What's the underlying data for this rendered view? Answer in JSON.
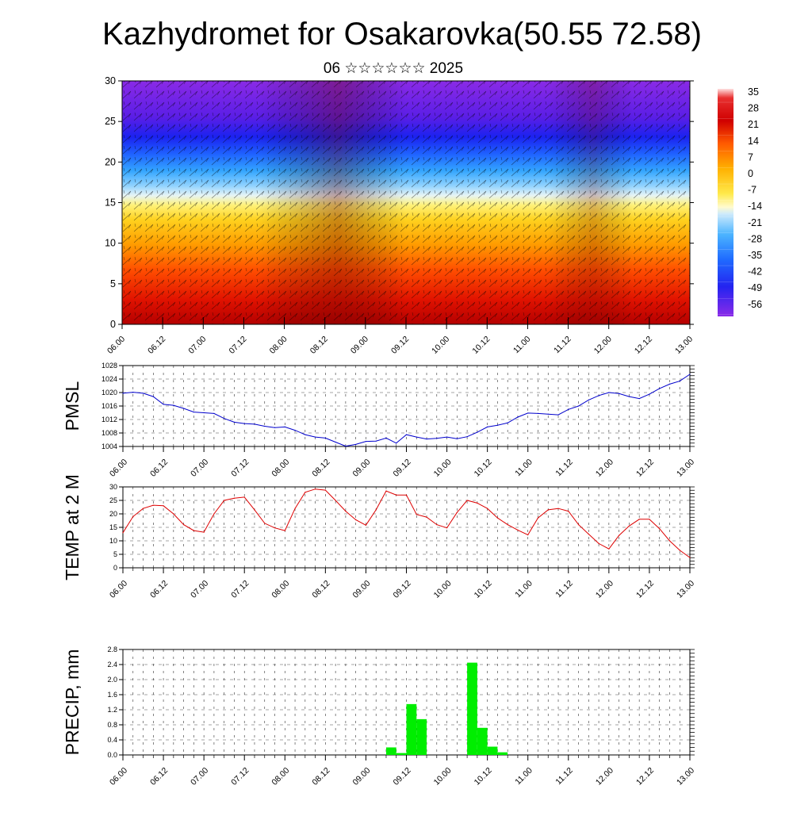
{
  "title": "Kazhydromet for Osakarovka(50.55 72.58)",
  "subtitle": "06 ☆☆☆☆☆☆ 2025",
  "x_ticks": [
    "06.00",
    "06.12",
    "07.00",
    "07.12",
    "08.00",
    "08.12",
    "09.00",
    "09.12",
    "10.00",
    "10.12",
    "11.00",
    "11.12",
    "12.00",
    "12.12",
    "13.00"
  ],
  "chart_data": [
    {
      "type": "heatmap",
      "ylim": [
        0,
        30
      ],
      "yticks": [
        "0",
        "5",
        "10",
        "15",
        "20",
        "25",
        "30"
      ],
      "colorbar_labels": [
        "35",
        "28",
        "21",
        "14",
        "7",
        "0",
        "-7",
        "-14",
        "-21",
        "-28",
        "-35",
        "-42",
        "-49",
        "-56"
      ],
      "colors": {
        "hot": "#b40000",
        "warm": "#ff8000",
        "mild": "#ffe94a",
        "cool": "#9ed8ff",
        "cold": "#1f6bff",
        "frigid": "#7a23e6"
      }
    },
    {
      "type": "line",
      "ylabel": "PMSL",
      "ylim": [
        1004,
        1028
      ],
      "yticks": [
        "1004",
        "1008",
        "1012",
        "1016",
        "1020",
        "1024",
        "1028"
      ],
      "color": "#0000cc",
      "x": [
        0,
        3,
        6,
        9,
        12,
        15,
        18,
        21,
        24,
        27,
        30,
        33,
        36,
        39,
        42,
        45,
        48,
        51,
        54,
        57,
        60,
        63,
        66,
        69,
        72,
        75,
        78,
        81,
        84,
        87,
        90,
        93,
        96,
        99,
        102,
        105,
        108,
        111,
        114,
        117,
        120,
        123,
        126,
        129,
        132,
        135,
        138,
        141,
        144,
        147,
        150,
        153,
        156,
        159,
        162,
        165,
        168
      ],
      "values": [
        1019.8,
        1020.1,
        1019.8,
        1018.8,
        1016.5,
        1016.2,
        1015.3,
        1014.2,
        1014.0,
        1013.8,
        1012.3,
        1011.2,
        1010.8,
        1010.6,
        1010.0,
        1009.6,
        1009.8,
        1008.8,
        1007.5,
        1006.8,
        1006.5,
        1005.3,
        1004.1,
        1004.6,
        1005.5,
        1005.6,
        1006.5,
        1005.0,
        1007.5,
        1006.8,
        1006.2,
        1006.4,
        1006.8,
        1006.3,
        1006.9,
        1008.2,
        1009.8,
        1010.3,
        1011.0,
        1012.7,
        1013.9,
        1013.8,
        1013.6,
        1013.4,
        1015.0,
        1016.0,
        1017.8,
        1019.1,
        1020.0,
        1019.7,
        1018.8,
        1018.2,
        1019.5,
        1021.2,
        1022.5,
        1023.4,
        1025.4
      ]
    },
    {
      "type": "line",
      "ylabel": "TEMP at 2 M",
      "ylim": [
        0,
        30
      ],
      "yticks": [
        "0",
        "5",
        "10",
        "15",
        "20",
        "25",
        "30"
      ],
      "color": "#dd0000",
      "x": [
        0,
        3,
        6,
        9,
        12,
        15,
        18,
        21,
        24,
        27,
        30,
        33,
        36,
        39,
        42,
        45,
        48,
        51,
        54,
        57,
        60,
        63,
        66,
        69,
        72,
        75,
        78,
        81,
        84,
        87,
        90,
        93,
        96,
        99,
        102,
        105,
        108,
        111,
        114,
        117,
        120,
        123,
        126,
        129,
        132,
        135,
        138,
        141,
        144,
        147,
        150,
        153,
        156,
        159,
        162,
        165,
        168
      ],
      "values": [
        13,
        19,
        22,
        23.2,
        23,
        20,
        16,
        13.8,
        13.2,
        20,
        25,
        25.8,
        26.2,
        21.5,
        16.5,
        14.8,
        13.8,
        22,
        28,
        29.2,
        28.8,
        25,
        21,
        17.8,
        15.8,
        21.5,
        28.5,
        27,
        27,
        19.8,
        18.8,
        16,
        14.8,
        20.5,
        25,
        24,
        22,
        18.5,
        16,
        14,
        12.2,
        18.5,
        21.5,
        22,
        21,
        16,
        12.5,
        9,
        7,
        12,
        15.5,
        18,
        18,
        14.5,
        10,
        6.5,
        3.8
      ]
    },
    {
      "type": "bar",
      "ylabel": "PRECIP, mm",
      "ylim": [
        0,
        2.8
      ],
      "yticks": [
        "0.0",
        "0.4",
        "0.8",
        "1.2",
        "1.6",
        "2.0",
        "2.4",
        "2.8"
      ],
      "color": "#00ee00",
      "x": [
        78,
        81,
        84,
        87,
        102,
        105,
        108,
        111
      ],
      "values": [
        0.2,
        0.05,
        1.35,
        0.95,
        2.45,
        0.72,
        0.22,
        0.07
      ]
    }
  ]
}
